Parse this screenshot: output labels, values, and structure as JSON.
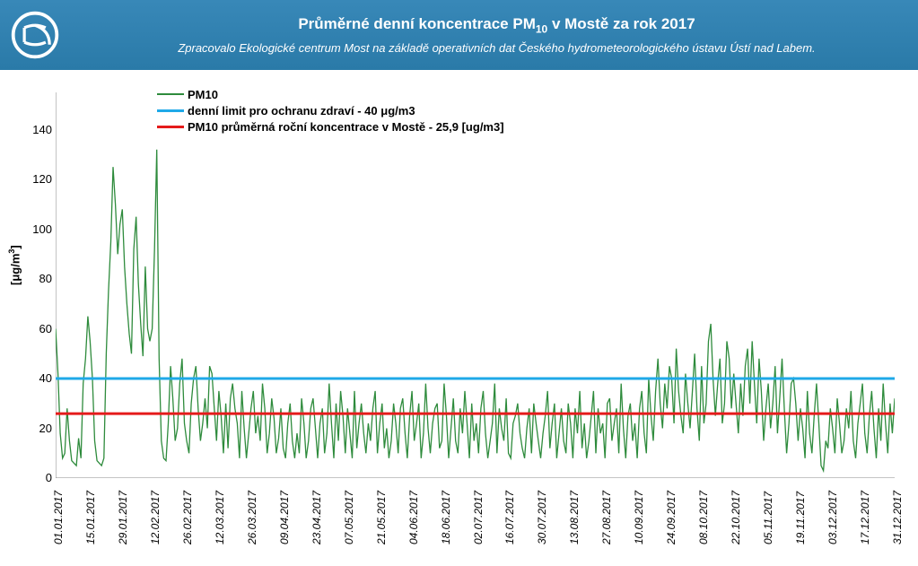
{
  "header": {
    "title_pre": "Průměrné denní koncentrace PM",
    "title_sub": "10",
    "title_post": " v Mostě za rok 2017",
    "subtitle": "Zpracovalo Ekologické centrum Most na základě operativních dat Českého hydrometeorologického ústavu Ústí nad Labem."
  },
  "chart": {
    "type": "line",
    "y_label_pre": "[μg/m",
    "y_label_sup": "3",
    "y_label_post": "]",
    "ylim": [
      0,
      155
    ],
    "yticks": [
      0,
      20,
      40,
      60,
      80,
      100,
      120,
      140
    ],
    "x_labels": [
      "01.01.2017",
      "15.01.2017",
      "29.01.2017",
      "12.02.2017",
      "26.02.2017",
      "12.03.2017",
      "26.03.2017",
      "09.04.2017",
      "23.04.2017",
      "07.05.2017",
      "21.05.2017",
      "04.06.2017",
      "18.06.2017",
      "02.07.2017",
      "16.07.2017",
      "30.07.2017",
      "13.08.2017",
      "27.08.2017",
      "10.09.2017",
      "24.09.2017",
      "08.10.2017",
      "22.10.2017",
      "05.11.2017",
      "19.11.2017",
      "03.12.2017",
      "17.12.2017",
      "31.12.2017"
    ],
    "series": {
      "pm10": {
        "label": "PM10",
        "color": "#2e8b3c",
        "width": 1.3,
        "values": [
          60,
          42,
          18,
          8,
          10,
          28,
          15,
          7,
          6,
          5,
          16,
          8,
          38,
          48,
          65,
          55,
          40,
          15,
          7,
          6,
          5,
          8,
          50,
          75,
          95,
          125,
          110,
          90,
          102,
          108,
          85,
          70,
          58,
          50,
          92,
          105,
          78,
          62,
          49,
          85,
          60,
          55,
          60,
          92,
          132,
          48,
          15,
          8,
          7,
          22,
          45,
          32,
          15,
          20,
          38,
          48,
          22,
          15,
          10,
          30,
          40,
          45,
          28,
          15,
          22,
          32,
          20,
          45,
          42,
          28,
          15,
          35,
          25,
          10,
          30,
          12,
          32,
          38,
          28,
          22,
          8,
          35,
          20,
          8,
          18,
          28,
          35,
          18,
          25,
          15,
          38,
          28,
          10,
          18,
          32,
          24,
          10,
          16,
          28,
          12,
          8,
          22,
          30,
          15,
          8,
          18,
          10,
          32,
          22,
          8,
          15,
          28,
          32,
          20,
          8,
          22,
          28,
          10,
          18,
          38,
          22,
          8,
          30,
          15,
          35,
          25,
          10,
          28,
          18,
          8,
          35,
          12,
          22,
          30,
          18,
          10,
          22,
          15,
          28,
          35,
          10,
          22,
          30,
          12,
          20,
          8,
          15,
          30,
          22,
          10,
          28,
          32,
          18,
          8,
          25,
          35,
          15,
          22,
          30,
          8,
          18,
          38,
          20,
          10,
          22,
          28,
          30,
          12,
          15,
          38,
          25,
          8,
          20,
          32,
          15,
          10,
          28,
          18,
          35,
          22,
          8,
          30,
          15,
          22,
          10,
          28,
          35,
          18,
          8,
          15,
          22,
          38,
          10,
          28,
          20,
          15,
          32,
          10,
          8,
          22,
          25,
          30,
          18,
          12,
          8,
          20,
          28,
          10,
          30,
          22,
          15,
          8,
          18,
          25,
          35,
          12,
          22,
          30,
          8,
          18,
          28,
          15,
          10,
          30,
          22,
          8,
          28,
          18,
          35,
          12,
          22,
          8,
          15,
          25,
          35,
          10,
          28,
          18,
          22,
          8,
          30,
          32,
          15,
          22,
          28,
          10,
          38,
          20,
          8,
          25,
          30,
          15,
          22,
          8,
          28,
          35,
          18,
          10,
          40,
          25,
          15,
          35,
          48,
          30,
          20,
          38,
          28,
          45,
          40,
          22,
          52,
          35,
          25,
          18,
          42,
          30,
          20,
          35,
          50,
          28,
          15,
          45,
          22,
          30,
          55,
          62,
          40,
          25,
          38,
          48,
          22,
          30,
          55,
          48,
          28,
          42,
          30,
          18,
          38,
          25,
          45,
          52,
          30,
          55,
          38,
          22,
          48,
          35,
          15,
          28,
          38,
          20,
          30,
          45,
          18,
          32,
          48,
          28,
          10,
          22,
          38,
          40,
          30,
          15,
          28,
          20,
          8,
          35,
          18,
          10,
          25,
          38,
          22,
          5,
          3,
          15,
          12,
          28,
          20,
          10,
          32,
          22,
          10,
          15,
          28,
          20,
          35,
          15,
          8,
          22,
          30,
          38,
          18,
          10,
          25,
          35,
          20,
          8,
          28,
          15,
          38,
          22,
          10,
          30,
          18,
          32
        ]
      },
      "daily_limit": {
        "label": "denní limit pro ochranu zdraví - 40 μg/m3",
        "color": "#1fa9e8",
        "width": 3,
        "value": 40
      },
      "annual_avg": {
        "label": "PM10 průměrná roční koncentrace v Mostě - 25,9 [ug/m3]",
        "color": "#e51b1b",
        "width": 3,
        "value": 25.9
      }
    },
    "background_color": "#ffffff",
    "axis_color": "#888888",
    "text_color": "#000000"
  }
}
